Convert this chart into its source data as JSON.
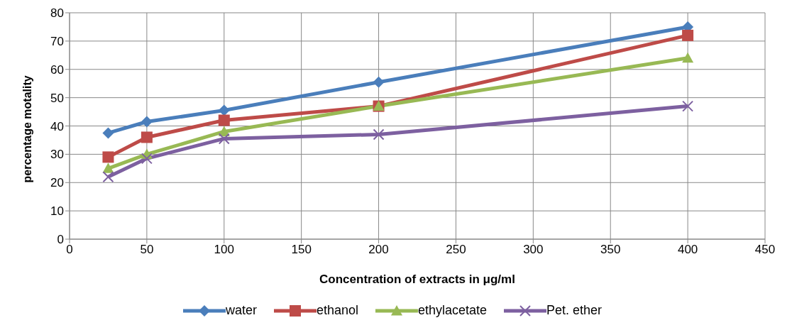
{
  "chart_data": {
    "type": "line",
    "xlabel": "Concentration of extracts in μg/ml",
    "ylabel": "percentage motality",
    "x": [
      25,
      50,
      100,
      200,
      400
    ],
    "series": [
      {
        "name": "water",
        "color": "#4a7ebb",
        "marker": "diamond",
        "values": [
          37.5,
          41.5,
          45.5,
          55.5,
          75
        ]
      },
      {
        "name": "ethanol",
        "color": "#be4b48",
        "marker": "square",
        "values": [
          29,
          36,
          42,
          47,
          72
        ]
      },
      {
        "name": "ethylacetate",
        "color": "#98b954",
        "marker": "triangle",
        "values": [
          25,
          30,
          38,
          47,
          64
        ]
      },
      {
        "name": "Pet. ether",
        "color": "#7d60a0",
        "marker": "cross",
        "values": [
          22,
          28.5,
          35.5,
          37,
          47
        ]
      }
    ],
    "xlim": [
      0,
      450
    ],
    "xticks": [
      0,
      50,
      100,
      150,
      200,
      250,
      300,
      350,
      400,
      450
    ],
    "ylim": [
      0,
      80
    ],
    "yticks": [
      0,
      10,
      20,
      30,
      40,
      50,
      60,
      70,
      80
    ],
    "grid": true,
    "legend": "bottom",
    "line_style": "solid"
  }
}
